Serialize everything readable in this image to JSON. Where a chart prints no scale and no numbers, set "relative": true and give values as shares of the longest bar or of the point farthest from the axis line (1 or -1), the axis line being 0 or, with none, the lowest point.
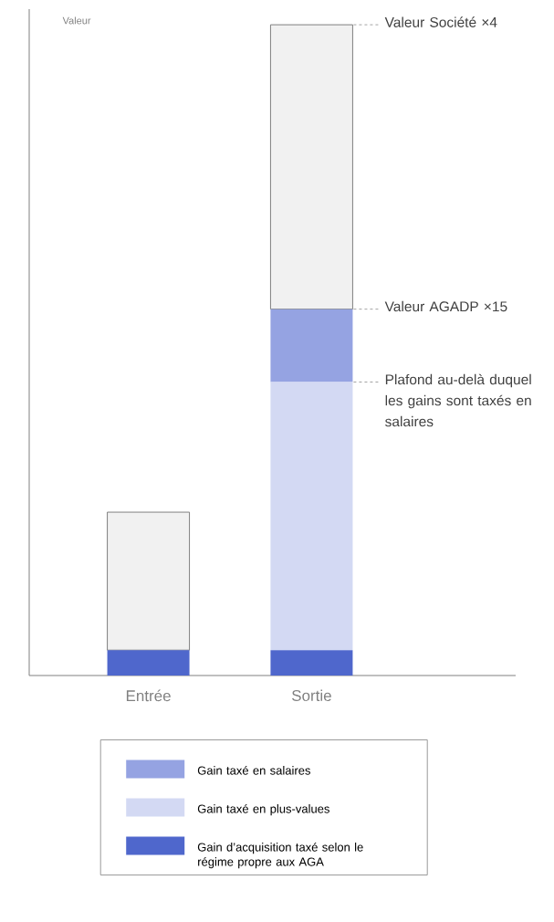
{
  "chart_data": {
    "type": "bar",
    "stacked": true,
    "relative": true,
    "ylabel": "Valeur",
    "categories": [
      "Entrée",
      "Sortie"
    ],
    "legend": "bottom",
    "series": [
      {
        "name": "Gain d’acquisition taxé selon le régime propre aux AGA",
        "color": "#4f67cc",
        "values": [
          0.039,
          0.039
        ]
      },
      {
        "name": "Gain taxé en plus-values",
        "color": "#d3d9f3",
        "values": [
          0,
          0.412
        ]
      },
      {
        "name": "Gain taxé en salaires",
        "color": "#95a3e2",
        "values": [
          0,
          0.112
        ]
      },
      {
        "color": "#f1f1f1",
        "values": [
          0.212,
          0.437
        ]
      }
    ],
    "annotations": [
      "Valeur Société ×4",
      "Valeur AGADP ×15",
      "Plafond au-delà duquel les gains sont taxés en salaires"
    ]
  }
}
